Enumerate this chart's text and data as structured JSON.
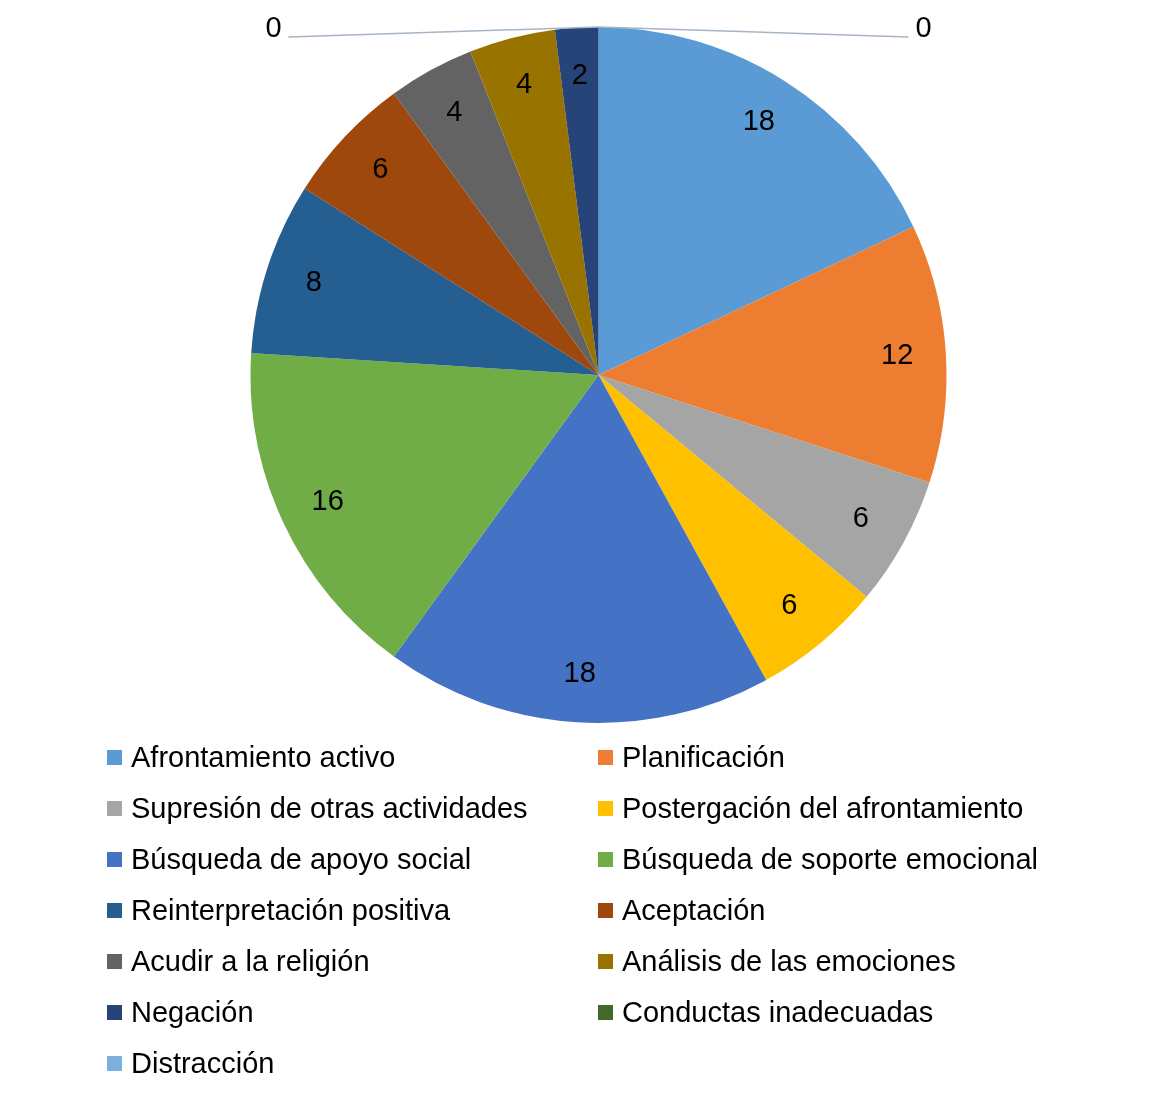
{
  "chart_data": {
    "type": "pie",
    "categories": [
      "Afrontamiento activo",
      "Planificación",
      "Supresión de otras actividades",
      "Postergación del afrontamiento",
      "Búsqueda de apoyo social",
      "Búsqueda de soporte emocional",
      "Reinterpretación positiva",
      "Aceptación",
      "Acudir a la religión",
      "Análisis de las emociones",
      "Negación",
      "Conductas inadecuadas",
      "Distracción"
    ],
    "values": [
      18,
      12,
      6,
      6,
      18,
      16,
      8,
      6,
      4,
      4,
      2,
      0,
      0
    ],
    "colors": [
      "#5b9bd5",
      "#ed7d31",
      "#a5a5a5",
      "#ffc000",
      "#4472c4",
      "#70ad47",
      "#255e91",
      "#9e480e",
      "#636363",
      "#997300",
      "#264478",
      "#43682b",
      "#7cafdd"
    ],
    "value_labels": [
      "18",
      "12",
      "6",
      "6",
      "18",
      "16",
      "8",
      "6",
      "4",
      "4",
      "2",
      "0",
      "0"
    ],
    "legend": "bottom"
  }
}
